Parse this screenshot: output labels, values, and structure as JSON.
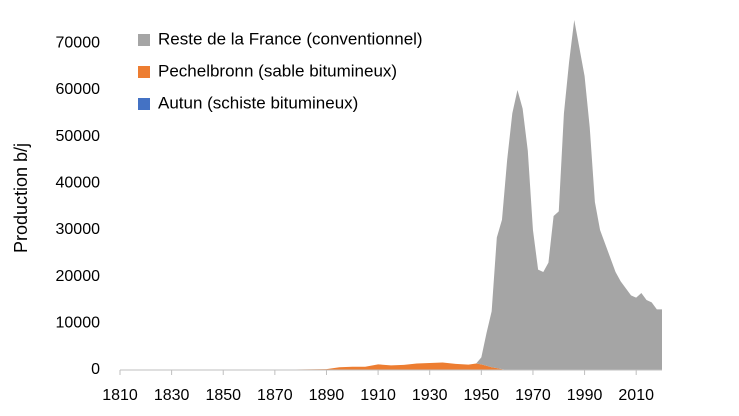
{
  "chart_data": {
    "type": "stacked_area",
    "y_label": "Production b/j",
    "x": [
      1810,
      1830,
      1850,
      1870,
      1890,
      1895,
      1900,
      1905,
      1910,
      1915,
      1920,
      1925,
      1930,
      1935,
      1940,
      1945,
      1948,
      1950,
      1952,
      1954,
      1956,
      1958,
      1960,
      1962,
      1964,
      1966,
      1968,
      1970,
      1972,
      1974,
      1976,
      1978,
      1980,
      1982,
      1984,
      1986,
      1988,
      1990,
      1992,
      1994,
      1996,
      1998,
      2000,
      2002,
      2004,
      2006,
      2008,
      2010,
      2012,
      2014,
      2016,
      2018,
      2020
    ],
    "series": [
      {
        "name": "Autun (schiste bitumineux)",
        "color": "#4472c4",
        "values": [
          0,
          0,
          0,
          50,
          100,
          100,
          100,
          100,
          100,
          100,
          100,
          100,
          100,
          100,
          100,
          50,
          0,
          0,
          0,
          0,
          0,
          0,
          0,
          0,
          0,
          0,
          0,
          0,
          0,
          0,
          0,
          0,
          0,
          0,
          0,
          0,
          0,
          0,
          0,
          0,
          0,
          0,
          0,
          0,
          0,
          0,
          0,
          0,
          0,
          0,
          0,
          0,
          0
        ]
      },
      {
        "name": "Pechelbronn (sable bitumineux)",
        "color": "#ed7d31",
        "values": [
          0,
          0,
          0,
          0,
          100,
          500,
          600,
          600,
          1100,
          900,
          1000,
          1300,
          1400,
          1500,
          1200,
          1100,
          1400,
          1200,
          900,
          600,
          400,
          200,
          0,
          0,
          0,
          0,
          0,
          0,
          0,
          0,
          0,
          0,
          0,
          0,
          0,
          0,
          0,
          0,
          0,
          0,
          0,
          0,
          0,
          0,
          0,
          0,
          0,
          0,
          0,
          0,
          0,
          0,
          0
        ]
      },
      {
        "name": "Reste de la France (conventionnel)",
        "color": "#a5a5a5",
        "values": [
          0,
          0,
          0,
          0,
          0,
          0,
          0,
          0,
          0,
          0,
          0,
          0,
          0,
          0,
          0,
          0,
          0,
          1500,
          7000,
          12000,
          28000,
          32000,
          45000,
          55000,
          60000,
          56000,
          47000,
          30000,
          21500,
          21000,
          23000,
          33000,
          34000,
          55000,
          66000,
          75000,
          69000,
          63000,
          52000,
          36000,
          30000,
          27000,
          24000,
          21000,
          19000,
          17500,
          16000,
          15500,
          16500,
          15000,
          14500,
          13000,
          13000
        ]
      }
    ],
    "xlim": [
      1810,
      2020
    ],
    "xticks": [
      1810,
      1830,
      1850,
      1870,
      1890,
      1910,
      1930,
      1950,
      1970,
      1990,
      2010
    ],
    "ylim": [
      0,
      75000
    ],
    "yticks": [
      0,
      10000,
      20000,
      30000,
      40000,
      50000,
      60000,
      70000
    ],
    "legend": "upper-left",
    "grid": false
  }
}
